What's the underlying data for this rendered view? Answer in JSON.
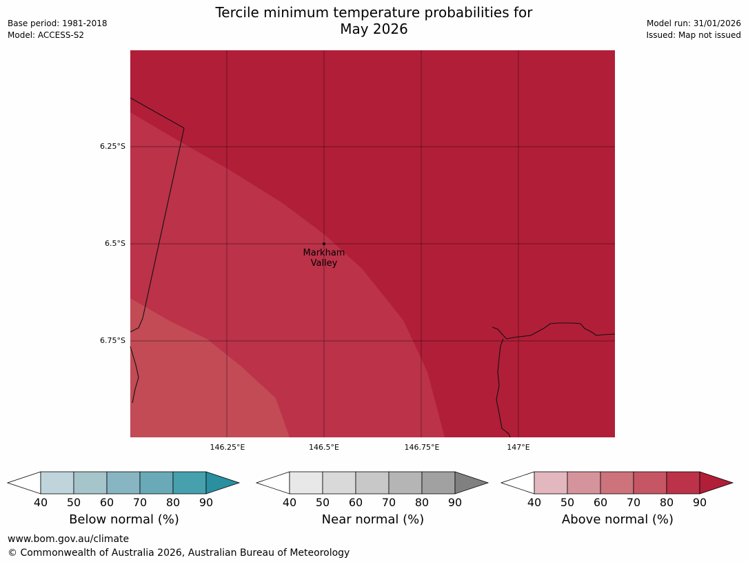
{
  "header": {
    "title_line1": "Tercile minimum temperature probabilities for",
    "title_line2": "May 2026",
    "base_period": "Base period: 1981-2018",
    "model": "Model: ACCESS-S2",
    "model_run": "Model run: 31/01/2026",
    "issued": "Issued: Map not issued"
  },
  "map": {
    "lat_labels": [
      "6.25°S",
      "6.5°S",
      "6.75°S"
    ],
    "lon_labels": [
      "146.25°E",
      "146.5°E",
      "146.75°E",
      "147°E"
    ],
    "place_name_line1": "Markham",
    "place_name_line2": "Valley",
    "zones": [
      {
        "name": "above-80-90",
        "color": "#b11e38"
      },
      {
        "name": "above-70-80",
        "color": "#bb3249"
      },
      {
        "name": "above-60-70",
        "color": "#c24b56"
      }
    ]
  },
  "legends": [
    {
      "label": "Below normal (%)",
      "ticks": [
        "40",
        "50",
        "60",
        "70",
        "80",
        "90"
      ],
      "colors": [
        "#bfd5db",
        "#a6c5cb",
        "#87b5c1",
        "#6aaab8",
        "#47a0ad",
        "#2a8f9e"
      ]
    },
    {
      "label": "Near normal (%)",
      "ticks": [
        "40",
        "50",
        "60",
        "70",
        "80",
        "90"
      ],
      "colors": [
        "#e8e8e8",
        "#d9d9d9",
        "#c8c8c8",
        "#b5b5b5",
        "#a1a1a1",
        "#808080"
      ]
    },
    {
      "label": "Above normal (%)",
      "ticks": [
        "40",
        "50",
        "60",
        "70",
        "80",
        "90"
      ],
      "colors": [
        "#e2b7bd",
        "#d5939c",
        "#cc737c",
        "#c65663",
        "#bb3249",
        "#b11e38"
      ]
    }
  ],
  "footer": {
    "url": "www.bom.gov.au/climate",
    "copyright": "© Commonwealth of Australia 2026, Australian Bureau of Meteorology"
  }
}
